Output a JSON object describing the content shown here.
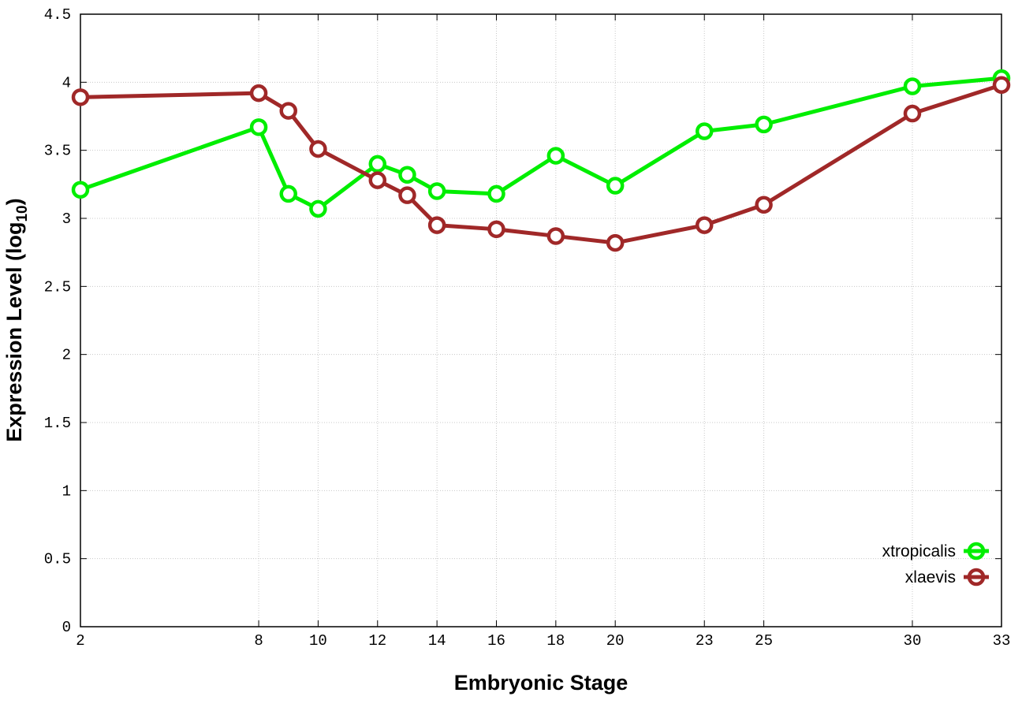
{
  "chart_data": {
    "type": "line",
    "title": "",
    "xlabel": "Embryonic Stage",
    "ylabel_main": "Expression Level (log",
    "ylabel_sub": "10",
    "ylabel_close": ")",
    "xlim": [
      2,
      33
    ],
    "ylim": [
      0,
      4.5
    ],
    "x_ticks": [
      2,
      8,
      10,
      12,
      14,
      16,
      18,
      20,
      23,
      25,
      30,
      33
    ],
    "x_tick_labels": [
      "2",
      "8",
      "10",
      "12",
      "14",
      "16",
      "18",
      "20",
      "23",
      "25",
      "30",
      "33"
    ],
    "y_ticks": [
      0,
      0.5,
      1,
      1.5,
      2,
      2.5,
      3,
      3.5,
      4,
      4.5
    ],
    "y_tick_labels": [
      "0",
      "0.5",
      "1",
      "1.5",
      "2",
      "2.5",
      "3",
      "3.5",
      "4",
      "4.5"
    ],
    "grid": true,
    "legend_position": "bottom-right",
    "x": [
      2,
      8,
      9,
      10,
      12,
      13,
      14,
      16,
      18,
      20,
      23,
      25,
      30,
      33
    ],
    "series": [
      {
        "name": "xtropicalis",
        "color": "#00ee00",
        "values": [
          3.21,
          3.67,
          3.18,
          3.07,
          3.4,
          3.32,
          3.2,
          3.18,
          3.46,
          3.24,
          3.64,
          3.69,
          3.97,
          4.03
        ]
      },
      {
        "name": "xlaevis",
        "color": "#a02828",
        "values": [
          3.89,
          3.92,
          3.79,
          3.51,
          3.28,
          3.17,
          2.95,
          2.92,
          2.87,
          2.82,
          2.95,
          3.1,
          3.77,
          3.98
        ]
      }
    ]
  }
}
